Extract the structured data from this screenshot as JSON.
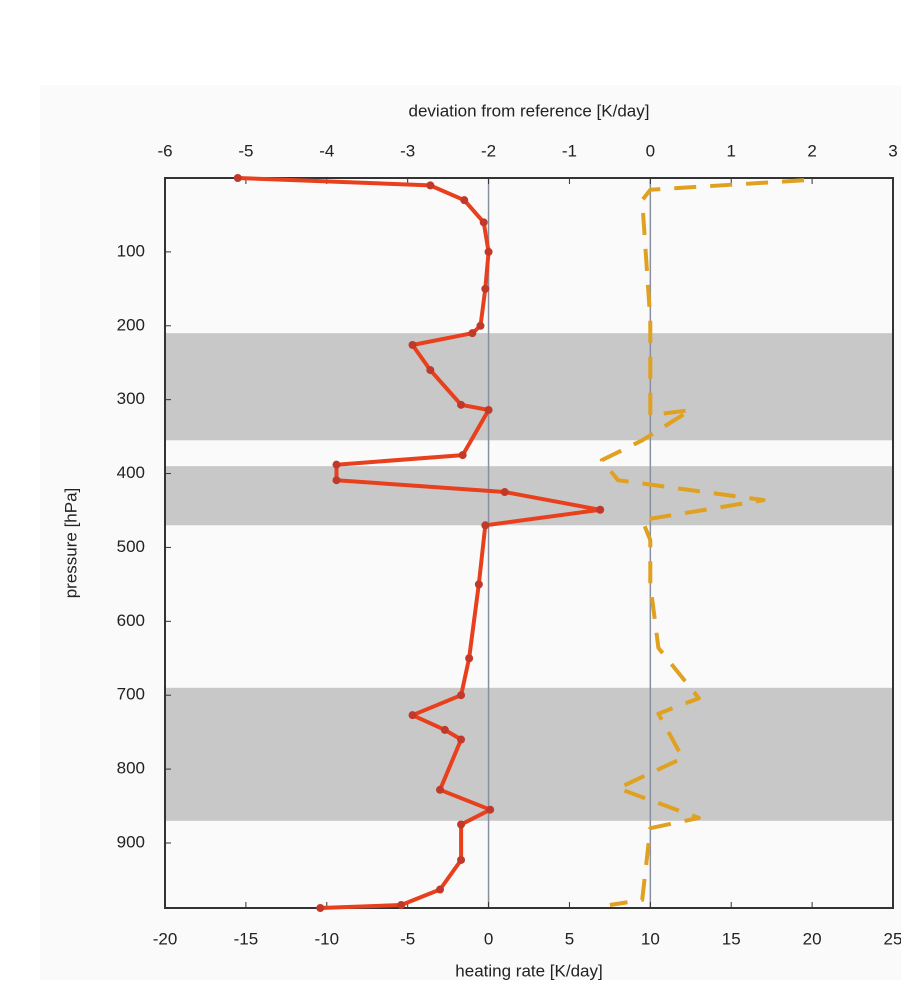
{
  "chart_data": {
    "type": "line",
    "xlabel": "heating rate [K/day]",
    "x2label": "deviation from reference [K/day]",
    "ylabel": "pressure [hPa]",
    "xlim": [
      -20,
      25
    ],
    "xticks": [
      -20,
      -15,
      -10,
      -5,
      0,
      5,
      10,
      15,
      20,
      25
    ],
    "x2lim": [
      -6,
      3
    ],
    "x2ticks": [
      -6,
      -5,
      -4,
      -3,
      -2,
      -1,
      0,
      1,
      2,
      3
    ],
    "ylim": [
      0,
      988
    ],
    "y_inverted": true,
    "yticks": [
      100,
      200,
      300,
      400,
      500,
      600,
      700,
      800,
      900
    ],
    "shaded_bands": [
      [
        210,
        355
      ],
      [
        390,
        470
      ],
      [
        690,
        870
      ]
    ],
    "band_color": "#c8c8c8",
    "zero_lines": true,
    "series": [
      {
        "color": "#e8401c",
        "marker_color": "#c0392b",
        "axis": "x",
        "dashed": false,
        "pressure": [
          0,
          10,
          30,
          60,
          100,
          150,
          200,
          210,
          226,
          260,
          307,
          314,
          375,
          388,
          409,
          425,
          449,
          470,
          550,
          650,
          700,
          727,
          747,
          760,
          828,
          855,
          875,
          923,
          963,
          984,
          988
        ],
        "values": [
          -15.5,
          -3.6,
          -1.5,
          -0.3,
          0,
          -0.2,
          -0.5,
          -1.0,
          -4.7,
          -3.6,
          -1.7,
          0,
          -1.6,
          -9.4,
          -9.4,
          1.0,
          6.9,
          -0.2,
          -0.6,
          -1.2,
          -1.7,
          -4.7,
          -2.7,
          -1.7,
          -3.0,
          0.1,
          -1.7,
          -1.7,
          -3.0,
          -5.4,
          -10.4
        ]
      },
      {
        "color": "#e0a020",
        "axis": "x2",
        "dashed": true,
        "pressure": [
          3,
          16,
          30,
          192,
          321,
          314,
          355,
          382,
          409,
          436,
          463,
          490,
          550,
          636,
          704,
          725,
          785,
          826,
          866,
          880,
          977,
          984
        ],
        "values": [
          1.9,
          0,
          -0.1,
          0,
          0,
          0.5,
          -0.1,
          -0.6,
          -0.4,
          1.4,
          -0.1,
          0,
          0,
          0.1,
          0.6,
          0.1,
          0.4,
          -0.4,
          0.6,
          0,
          -0.1,
          -0.5
        ]
      }
    ]
  }
}
